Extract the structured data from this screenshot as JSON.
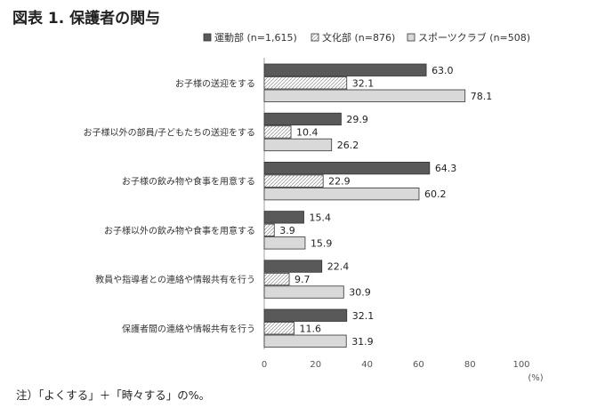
{
  "title": "図表 1. 保護者の関与",
  "note": "注）「よくする」＋「時々する」の%。",
  "chart_data": {
    "type": "bar",
    "orientation": "horizontal",
    "categories": [
      "お子様の送迎をする",
      "お子様以外の部員/子どもたちの送迎をする",
      "お子様の飲み物や食事を用意する",
      "お子様以外の飲み物や食事を用意する",
      "教員や指導者との連絡や情報共有を行う",
      "保護者間の連絡や情報共有を行う"
    ],
    "series": [
      {
        "name": "運動部 (n=1,615)",
        "values": [
          63.0,
          29.9,
          64.3,
          15.4,
          22.4,
          32.1
        ],
        "color": "#595959",
        "pattern": "solid"
      },
      {
        "name": "文化部 (n=876)",
        "values": [
          32.1,
          10.4,
          22.9,
          3.9,
          9.7,
          11.6
        ],
        "color": "#ffffff",
        "pattern": "hatch"
      },
      {
        "name": "スポーツクラブ (n=508)",
        "values": [
          78.1,
          26.2,
          60.2,
          15.9,
          30.9,
          31.9
        ],
        "color": "#d9d9d9",
        "pattern": "solid"
      }
    ],
    "xlim": [
      0,
      100
    ],
    "xticks": [
      0,
      20,
      40,
      60,
      80,
      100
    ],
    "unit_label": "(%)",
    "legend_position": "top",
    "grid": false
  }
}
